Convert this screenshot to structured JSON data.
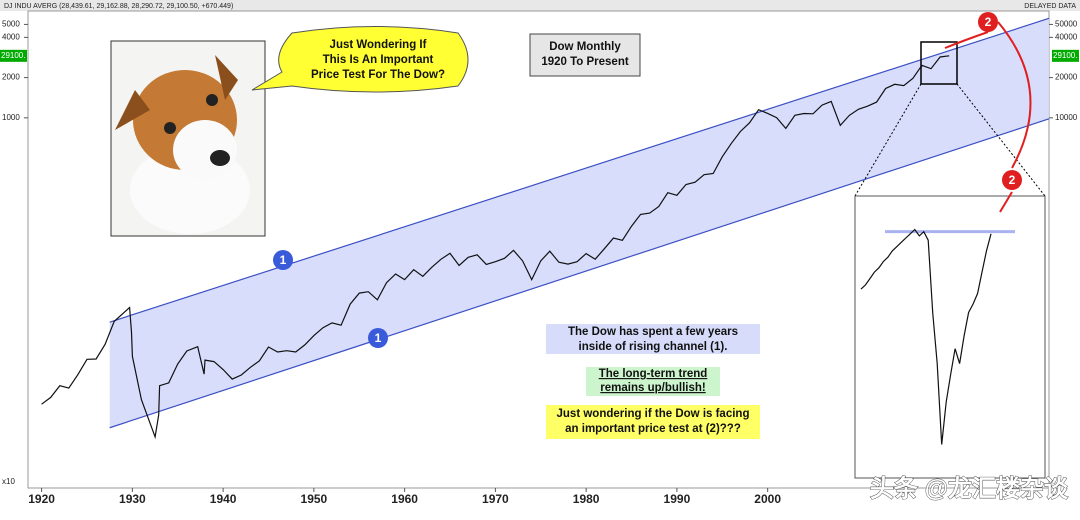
{
  "header": {
    "symbol": "DJ INDU AVERG (28,439.61, 29,162.88, 28,290.72, 29,100.50, +670.449)",
    "status": "DELAYED DATA"
  },
  "chart_data": {
    "type": "line",
    "title": "Dow Monthly",
    "subtitle": "1920 To Present",
    "log_scale": true,
    "xlim": [
      1918.5,
      2031
    ],
    "xticks": [
      1920,
      1930,
      1940,
      1950,
      1960,
      1970,
      1980,
      1990,
      2000
    ],
    "ylim": [
      17,
      63000
    ],
    "yticks": [
      10000,
      20000,
      40000,
      50000
    ],
    "y2lim": [
      17,
      63000
    ],
    "y2ticks": [
      {
        "value": 10000,
        "label": "1000"
      },
      {
        "value": 20000,
        "label": "2000"
      },
      {
        "value": 40000,
        "label": "4000"
      },
      {
        "value": 50000,
        "label": "5000"
      }
    ],
    "scale_note": "x10",
    "last_price_label": "29100.",
    "series": [
      {
        "color": "#111111",
        "x": [
          1920,
          1921,
          1922,
          1923,
          1924,
          1925,
          1926,
          1927,
          1928,
          1929.7,
          1929.9,
          1930,
          1931,
          1932.5,
          1932.9,
          1933,
          1934,
          1935,
          1936,
          1937.2,
          1937.9,
          1938,
          1939,
          1940,
          1941,
          1942,
          1943,
          1944,
          1945,
          1946,
          1947,
          1948,
          1949,
          1950,
          1951,
          1952,
          1953,
          1954,
          1955,
          1956,
          1957,
          1958,
          1959,
          1960,
          1961,
          1962,
          1963,
          1964,
          1965,
          1966,
          1967,
          1968,
          1969,
          1970,
          1971,
          1972,
          1973,
          1974,
          1975,
          1976,
          1977,
          1978,
          1979,
          1980,
          1981,
          1982,
          1983,
          1984,
          1985,
          1986,
          1987,
          1988,
          1989,
          1990,
          1991,
          1992,
          1993,
          1994,
          1995,
          1996,
          1997,
          1998,
          1999,
          2000,
          2001,
          2002,
          2003,
          2004,
          2005,
          2006,
          2007,
          2008,
          2009,
          2010,
          2011,
          2012,
          2013,
          2014,
          2015,
          2016,
          2017,
          2018,
          2019,
          2020
        ],
        "values": [
          72,
          81,
          99,
          95,
          120,
          156,
          157,
          202,
          300,
          381,
          248,
          164,
          78,
          41,
          60,
          99,
          104,
          144,
          180,
          194,
          121,
          154,
          150,
          131,
          111,
          119,
          136,
          152,
          193,
          177,
          181,
          177,
          200,
          235,
          269,
          292,
          281,
          404,
          488,
          500,
          435,
          584,
          679,
          616,
          731,
          652,
          763,
          874,
          969,
          786,
          905,
          944,
          800,
          839,
          890,
          1020,
          851,
          616,
          852,
          1005,
          831,
          805,
          839,
          964,
          875,
          1047,
          1259,
          1212,
          1547,
          1896,
          1939,
          2169,
          2753,
          2634,
          3169,
          3301,
          3754,
          3834,
          5117,
          6448,
          7908,
          9181,
          11497,
          10787,
          10022,
          8342,
          10454,
          10783,
          10718,
          12463,
          13265,
          8776,
          10428,
          11578,
          12218,
          13104,
          16577,
          17823,
          17425,
          19763,
          24719,
          23327,
          28538,
          29100
        ]
      }
    ],
    "channels": [
      {
        "x": [
          1927.5,
          2031
        ],
        "values": [
          296,
          55500
        ]
      },
      {
        "x": [
          1927.5,
          2031
        ],
        "values": [
          48,
          9830
        ]
      }
    ],
    "inset": {
      "ylim": [
        18000,
        30500
      ],
      "resistance": 29200,
      "values": [
        26500,
        26700,
        27000,
        27300,
        27500,
        27800,
        28000,
        28300,
        28500,
        28700,
        28900,
        29100,
        29300,
        29000,
        29200,
        28800,
        25400,
        23000,
        19200,
        21200,
        22500,
        23700,
        23000,
        24300,
        25400,
        25800,
        26300,
        27300,
        28300,
        29100
      ]
    },
    "markers": [
      "1",
      "1",
      "2",
      "2"
    ]
  },
  "annotations": {
    "bubble": [
      "Just Wondering If",
      "This Is An Important",
      "Price Test For The Dow?"
    ],
    "note_channel": [
      "The Dow has spent a few years",
      "inside of rising channel (1)."
    ],
    "note_trend": [
      "The long-term trend",
      "remains up/bullish!"
    ],
    "note_test": [
      "Just wondering if the Dow is facing",
      "an important price test at (2)???"
    ],
    "watermark": "头条 @龙汇楼杂谈"
  }
}
